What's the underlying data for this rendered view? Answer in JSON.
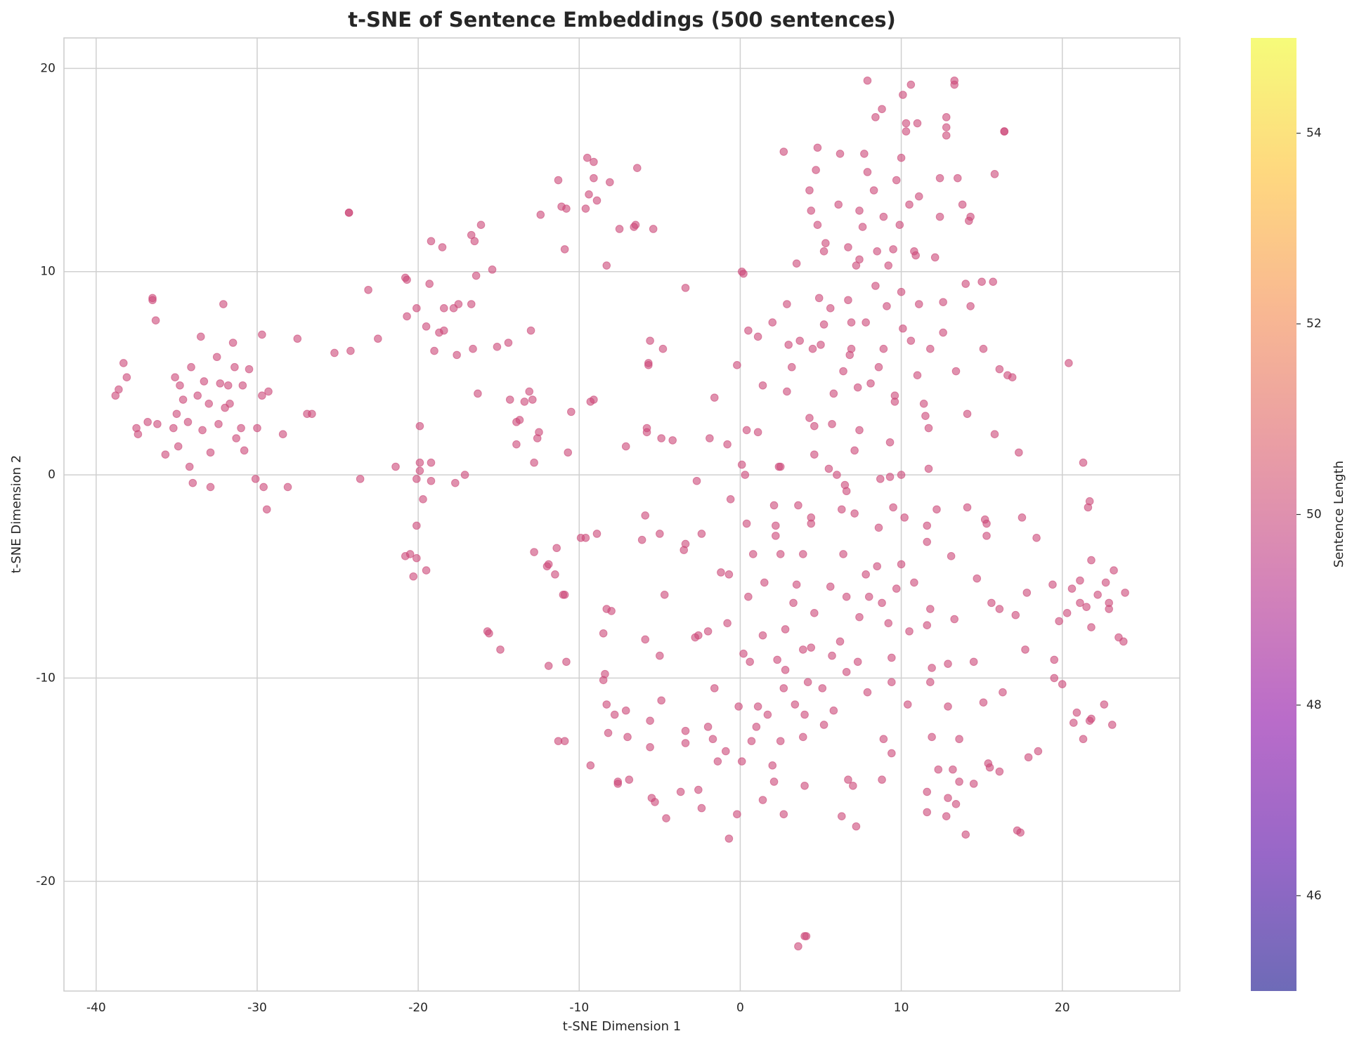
{
  "chart_data": {
    "type": "scatter",
    "title": "t-SNE of Sentence Embeddings (500 sentences)",
    "x_label": "t-SNE Dimension 1",
    "y_label": "t-SNE Dimension 2",
    "xlim": [
      -42,
      27.3
    ],
    "ylim": [
      -25.4,
      21.5
    ],
    "xticks": [
      -40,
      -30,
      -20,
      -10,
      0,
      10,
      20
    ],
    "yticks": [
      -20,
      -10,
      0,
      10,
      20
    ],
    "grid": true,
    "color": "#cc4778",
    "alpha": 0.6,
    "colorbar": {
      "label": "Sentence Length",
      "colormap": "plasma",
      "lim": [
        45,
        55
      ],
      "ticks": [
        46,
        48,
        50,
        52,
        54
      ]
    },
    "x": [
      -38.8,
      -38.6,
      -38.3,
      -38.1,
      -37.5,
      -37.4,
      -36.8,
      -36.5,
      -36.5,
      -36.3,
      -36.2,
      -35.7,
      -35.2,
      -35.1,
      -35.0,
      -34.9,
      -34.8,
      -34.6,
      -34.3,
      -34.2,
      -34.1,
      -34.0,
      -33.7,
      -33.5,
      -33.4,
      -33.3,
      -33.0,
      -32.9,
      -32.9,
      -32.5,
      -32.4,
      -32.3,
      -32.1,
      -32.0,
      -31.8,
      -31.7,
      -31.5,
      -31.4,
      -31.3,
      -31.0,
      -30.9,
      -30.8,
      -30.5,
      -30.1,
      -30.0,
      -29.7,
      -29.7,
      -29.6,
      -29.4,
      -29.3,
      -28.4,
      -28.1,
      -27.5,
      -26.9,
      -26.6,
      -25.2,
      -24.3,
      -24.3,
      -24.2,
      -23.6,
      -23.1,
      -22.5,
      -21.4,
      -20.8,
      -20.7,
      -20.7,
      -20.8,
      -20.5,
      -20.3,
      -20.1,
      -20.1,
      -20.1,
      -20.1,
      -19.9,
      -19.9,
      -19.9,
      -19.7,
      -19.5,
      -19.5,
      -19.3,
      -19.2,
      -19.2,
      -19.2,
      -19.0,
      -18.7,
      -18.5,
      -18.4,
      -18.4,
      -17.8,
      -17.7,
      -17.6,
      -17.5,
      -17.1,
      -16.7,
      -16.7,
      -16.6,
      -16.5,
      -16.4,
      -16.3,
      -16.1,
      -15.7,
      -15.6,
      -15.4,
      -15.1,
      -14.9,
      -14.4,
      -14.3,
      -13.9,
      -13.9,
      -13.7,
      -13.4,
      -13.1,
      -13.0,
      -12.9,
      -12.8,
      -12.8,
      -12.6,
      -12.5,
      -12.4,
      -12.0,
      -11.9,
      -11.9,
      -11.5,
      -11.4,
      -11.3,
      -11.3,
      -11.1,
      -11.0,
      -10.9,
      -10.9,
      -10.9,
      -10.8,
      -10.8,
      -10.7,
      -10.5,
      -9.9,
      -9.6,
      -9.6,
      -9.5,
      -9.4,
      -9.3,
      -9.3,
      -9.1,
      -9.1,
      -9.1,
      -8.9,
      -8.9,
      -8.5,
      -8.5,
      -8.4,
      -8.3,
      -8.3,
      -8.3,
      -8.2,
      -8.1,
      -8.0,
      -7.8,
      -7.6,
      -7.6,
      -7.5,
      -7.1,
      -7.1,
      -7.0,
      -6.9,
      -6.6,
      -6.5,
      -6.4,
      -6.1,
      -5.9,
      -5.9,
      -5.8,
      -5.8,
      -5.7,
      -5.7,
      -5.6,
      -5.6,
      -5.6,
      -5.5,
      -5.4,
      -5.3,
      -5.0,
      -5.0,
      -4.9,
      -4.9,
      -4.8,
      -4.7,
      -4.6,
      -4.2,
      -3.7,
      -3.5,
      -3.4,
      -3.4,
      -3.4,
      -3.4,
      -2.8,
      -2.7,
      -2.6,
      -2.6,
      -2.4,
      -2.4,
      -2.0,
      -2.0,
      -1.9,
      -1.7,
      -1.6,
      -1.6,
      -1.4,
      -1.2,
      -0.9,
      -0.8,
      -0.8,
      -0.7,
      -0.7,
      -0.6,
      -0.2,
      -0.2,
      -0.1,
      0.1,
      0.1,
      0.1,
      0.2,
      0.2,
      0.3,
      0.4,
      0.4,
      0.5,
      0.5,
      0.6,
      0.7,
      0.8,
      1.0,
      1.1,
      1.1,
      1.1,
      1.4,
      1.4,
      1.4,
      1.5,
      1.7,
      2.0,
      2.0,
      2.1,
      2.1,
      2.2,
      2.2,
      2.3,
      2.4,
      2.5,
      2.5,
      2.5,
      2.7,
      2.7,
      2.7,
      2.8,
      2.8,
      2.9,
      2.9,
      3.0,
      3.2,
      3.3,
      3.4,
      3.5,
      3.5,
      3.6,
      3.6,
      3.7,
      3.9,
      3.9,
      3.9,
      4.0,
      4.0,
      4.0,
      4.1,
      4.2,
      4.3,
      4.3,
      4.4,
      4.4,
      4.4,
      4.4,
      4.5,
      4.6,
      4.6,
      4.6,
      4.7,
      4.8,
      4.8,
      4.9,
      5.0,
      5.1,
      5.2,
      5.2,
      5.2,
      5.3,
      5.5,
      5.6,
      5.6,
      5.7,
      5.7,
      5.8,
      5.8,
      6.0,
      6.1,
      6.2,
      6.2,
      6.3,
      6.3,
      6.4,
      6.4,
      6.5,
      6.6,
      6.6,
      6.6,
      6.7,
      6.7,
      6.7,
      6.8,
      6.9,
      6.9,
      7.0,
      7.1,
      7.1,
      7.2,
      7.2,
      7.3,
      7.3,
      7.4,
      7.4,
      7.4,
      7.4,
      7.6,
      7.7,
      7.8,
      7.8,
      7.9,
      7.9,
      7.9,
      8.0,
      8.1,
      8.3,
      8.4,
      8.4,
      8.5,
      8.5,
      8.6,
      8.6,
      8.7,
      8.8,
      8.8,
      8.8,
      8.9,
      8.9,
      8.9,
      9.1,
      9.2,
      9.2,
      9.3,
      9.3,
      9.4,
      9.4,
      9.4,
      9.5,
      9.5,
      9.6,
      9.6,
      9.7,
      9.7,
      9.9,
      10.0,
      10.0,
      10.0,
      10.0,
      10.1,
      10.1,
      10.2,
      10.3,
      10.3,
      10.4,
      10.5,
      10.5,
      10.6,
      10.6,
      10.8,
      10.8,
      10.9,
      11.0,
      11.0,
      11.1,
      11.1,
      11.4,
      11.5,
      11.6,
      11.6,
      11.6,
      11.6,
      11.6,
      11.7,
      11.7,
      11.8,
      11.8,
      11.8,
      11.9,
      11.9,
      12.1,
      12.2,
      12.3,
      12.4,
      12.4,
      12.6,
      12.6,
      12.8,
      12.8,
      12.8,
      12.8,
      12.9,
      12.9,
      12.9,
      13.1,
      13.2,
      13.3,
      13.3,
      13.3,
      13.4,
      13.4,
      13.5,
      13.6,
      13.6,
      13.8,
      14.0,
      14.0,
      14.1,
      14.1,
      14.2,
      14.3,
      14.3,
      14.5,
      14.5,
      14.7,
      15.0,
      15.1,
      15.1,
      15.2,
      15.3,
      15.3,
      15.4,
      15.5,
      15.6,
      15.7,
      15.8,
      15.8,
      16.1,
      16.1,
      16.1,
      16.3,
      16.4,
      16.4,
      16.6,
      16.9,
      17.1,
      17.2,
      17.3,
      17.4,
      17.5,
      17.7,
      17.8,
      17.9,
      18.4,
      18.5,
      19.4,
      19.5,
      19.5,
      19.8,
      20.0,
      20.3,
      20.4,
      20.6,
      20.7,
      20.9,
      21.1,
      21.1,
      21.3,
      21.3,
      21.5,
      21.6,
      21.7,
      21.7,
      21.8,
      21.8,
      21.8,
      22.2,
      22.6,
      22.7,
      22.9,
      22.9,
      23.1,
      23.2,
      23.5,
      23.8,
      23.9
    ],
    "values": [
      3.9,
      4.2,
      5.5,
      4.8,
      2.3,
      2.0,
      2.6,
      8.7,
      8.6,
      7.6,
      2.5,
      1.0,
      2.3,
      4.8,
      3.0,
      1.4,
      4.4,
      3.7,
      2.6,
      0.4,
      5.3,
      -0.4,
      3.9,
      6.8,
      2.2,
      4.6,
      3.5,
      1.1,
      -0.6,
      5.8,
      2.5,
      4.5,
      8.4,
      3.3,
      4.4,
      3.5,
      6.5,
      5.3,
      1.8,
      2.3,
      4.4,
      1.2,
      5.2,
      -0.2,
      2.3,
      6.9,
      3.9,
      -0.6,
      -1.7,
      4.1,
      2.0,
      -0.6,
      6.7,
      3.0,
      3.0,
      6.0,
      12.9,
      12.9,
      6.1,
      -0.2,
      9.1,
      6.7,
      0.4,
      9.7,
      9.6,
      7.8,
      -4.0,
      -3.9,
      -5.0,
      8.2,
      -0.2,
      -2.5,
      -4.1,
      2.4,
      0.6,
      0.2,
      -1.2,
      7.3,
      -4.7,
      9.4,
      11.5,
      0.6,
      -0.3,
      6.1,
      7.0,
      11.2,
      8.2,
      7.1,
      8.2,
      -0.4,
      5.9,
      8.4,
      0.0,
      8.4,
      11.8,
      6.2,
      11.5,
      9.8,
      4.0,
      12.3,
      -7.7,
      -7.8,
      10.1,
      6.3,
      -8.6,
      6.5,
      3.7,
      1.5,
      2.6,
      2.7,
      3.6,
      4.1,
      7.1,
      3.7,
      0.6,
      -3.8,
      1.8,
      2.1,
      12.8,
      -4.5,
      -4.4,
      -9.4,
      -4.9,
      -3.6,
      14.5,
      -13.1,
      13.2,
      -5.9,
      -5.9,
      -13.1,
      11.1,
      13.1,
      -9.2,
      1.1,
      3.1,
      -3.1,
      -3.1,
      13.1,
      15.6,
      13.8,
      3.6,
      -14.3,
      15.4,
      14.6,
      3.7,
      13.5,
      -2.9,
      -7.8,
      -10.1,
      -9.8,
      10.3,
      -6.6,
      -11.3,
      -12.7,
      14.4,
      -6.7,
      -11.8,
      -15.2,
      -15.1,
      12.1,
      1.4,
      -11.6,
      -12.9,
      -15.0,
      12.2,
      12.3,
      15.1,
      -3.2,
      -2.0,
      -8.1,
      2.3,
      2.1,
      5.4,
      5.5,
      6.6,
      -12.1,
      -13.4,
      -15.9,
      12.1,
      -16.1,
      -8.9,
      -2.9,
      -11.1,
      1.8,
      6.2,
      -5.9,
      -16.9,
      1.7,
      -15.6,
      -3.7,
      9.2,
      -3.4,
      -12.6,
      -13.2,
      -8.0,
      -0.3,
      -7.9,
      -15.5,
      -2.9,
      -16.4,
      -12.4,
      -7.7,
      1.8,
      -13.0,
      -10.5,
      3.8,
      -14.1,
      -4.8,
      -13.6,
      -7.3,
      1.5,
      -4.9,
      -17.9,
      -1.2,
      5.4,
      -16.7,
      -11.4,
      10.0,
      0.5,
      -14.1,
      9.9,
      -8.8,
      0.0,
      -2.4,
      2.2,
      7.1,
      -6.0,
      -9.2,
      -13.1,
      -3.9,
      -12.4,
      6.8,
      2.1,
      -11.4,
      -7.9,
      -16.0,
      4.4,
      -5.3,
      -11.8,
      7.5,
      -14.3,
      -15.1,
      -1.5,
      -3.0,
      -2.5,
      -9.1,
      0.4,
      0.4,
      -3.9,
      -13.1,
      15.9,
      -10.5,
      -16.7,
      -7.6,
      -9.6,
      8.4,
      4.1,
      6.4,
      5.3,
      -6.3,
      -11.3,
      10.4,
      -5.4,
      -1.5,
      -23.2,
      6.6,
      -8.6,
      -12.9,
      -3.9,
      -11.8,
      -15.3,
      -22.7,
      -22.7,
      -10.2,
      2.8,
      14.0,
      13.0,
      -2.1,
      -2.4,
      -8.5,
      6.2,
      2.4,
      1.0,
      -6.8,
      15.0,
      16.1,
      12.3,
      8.7,
      6.4,
      -10.5,
      7.4,
      11.0,
      -12.3,
      11.4,
      0.3,
      8.2,
      -5.5,
      -8.9,
      2.5,
      4.0,
      -11.6,
      0.0,
      13.3,
      15.8,
      -8.2,
      -16.8,
      -1.7,
      -3.9,
      5.1,
      -0.5,
      -6.0,
      -9.7,
      -0.8,
      8.6,
      11.2,
      -15.0,
      5.9,
      6.2,
      7.5,
      -15.3,
      -1.9,
      1.2,
      -17.3,
      10.3,
      4.3,
      -9.2,
      10.6,
      2.2,
      13.0,
      -7.0,
      12.2,
      15.8,
      -4.9,
      7.5,
      19.4,
      14.9,
      -10.7,
      -6.0,
      4.5,
      14.0,
      9.3,
      17.6,
      11.0,
      -4.5,
      5.3,
      -2.6,
      -0.2,
      -6.3,
      18.0,
      -15.0,
      12.7,
      6.2,
      -13.0,
      8.3,
      10.3,
      -7.3,
      -0.1,
      1.6,
      -13.7,
      -10.2,
      -9.0,
      11.1,
      -1.6,
      3.9,
      3.6,
      14.5,
      -5.6,
      12.3,
      9.0,
      15.6,
      0.0,
      -4.4,
      18.7,
      7.2,
      -2.1,
      17.3,
      16.9,
      -11.3,
      13.3,
      -7.7,
      19.2,
      6.6,
      11.0,
      -5.3,
      10.8,
      17.3,
      4.9,
      8.4,
      13.7,
      3.5,
      2.9,
      -2.5,
      -3.3,
      -7.4,
      -15.6,
      -16.6,
      2.3,
      0.3,
      6.2,
      -6.6,
      -10.2,
      -9.5,
      -12.9,
      10.7,
      -1.7,
      -14.5,
      14.6,
      12.7,
      7.0,
      8.5,
      16.7,
      17.1,
      17.6,
      -16.8,
      -9.3,
      -11.4,
      -15.9,
      -4.0,
      -14.5,
      19.2,
      19.4,
      -7.1,
      5.1,
      -16.2,
      14.6,
      -15.1,
      -13.0,
      13.3,
      -17.7,
      9.4,
      3.0,
      -1.6,
      12.5,
      12.7,
      8.3,
      -9.2,
      -15.2,
      -5.1,
      9.5,
      6.2,
      -11.2,
      -2.2,
      -2.4,
      -3.0,
      -14.2,
      -14.4,
      -6.3,
      9.5,
      2.0,
      14.8,
      -14.6,
      -6.6,
      5.2,
      -10.7,
      16.9,
      16.9,
      4.9,
      4.8,
      -6.9,
      -17.5,
      1.1,
      -17.6,
      -2.1,
      -8.6,
      -5.8,
      -13.9,
      -3.1,
      -13.6,
      -5.4,
      -9.1,
      -10.0,
      -7.2,
      -10.3,
      -6.8,
      5.5,
      -5.6,
      -12.2,
      -11.7,
      -5.2,
      -6.3,
      -13.0,
      0.6,
      -6.5,
      -1.6,
      -12.1,
      -1.3,
      -12.0,
      -4.2,
      -7.5,
      -5.9,
      -11.3,
      -5.3,
      -6.3,
      -6.6,
      -12.3,
      -4.7,
      -8.0,
      -8.2,
      -5.8
    ]
  }
}
